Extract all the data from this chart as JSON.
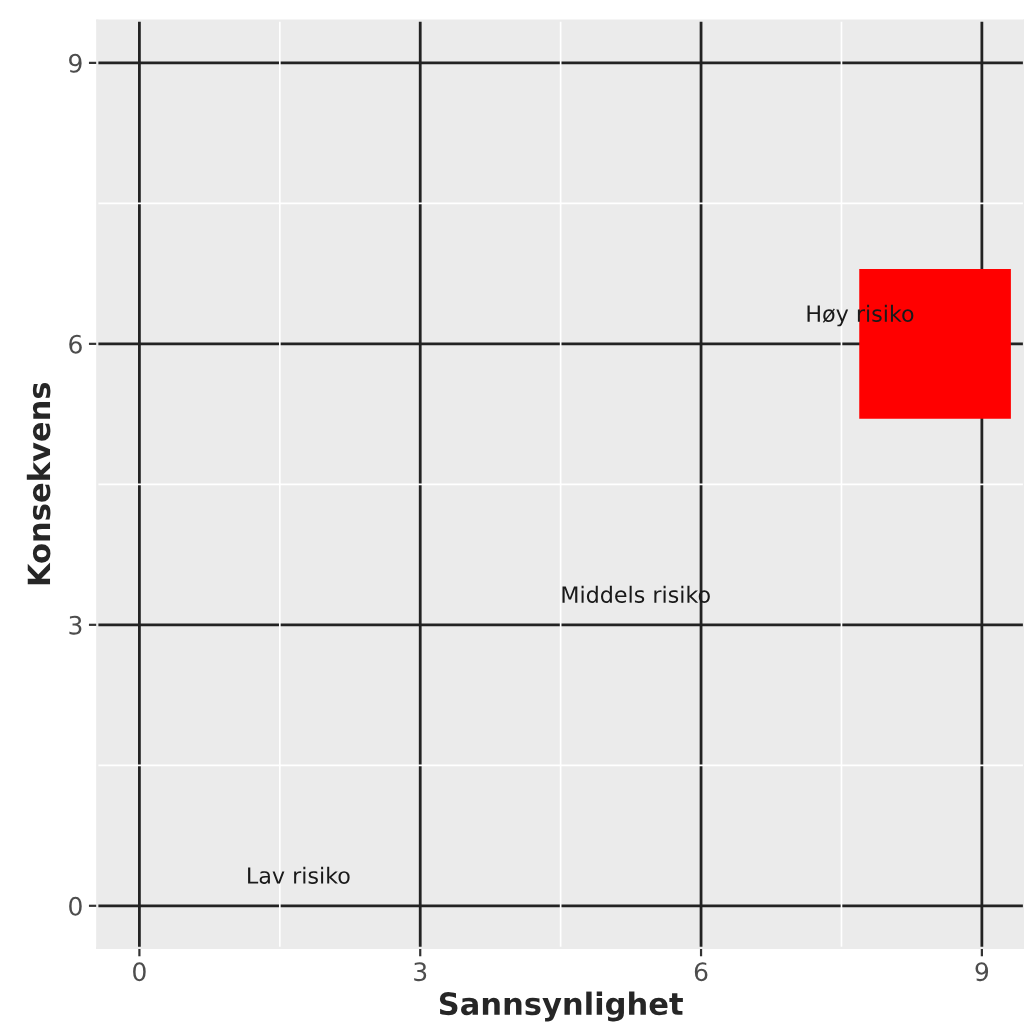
{
  "chart_data": {
    "type": "bar",
    "xlabel": "Sannsynlighet",
    "ylabel": "Konsekvens",
    "x": [
      8.5
    ],
    "series": [
      {
        "color": "#ff0000",
        "values": [
          1.6
        ],
        "base": [
          5.2
        ]
      }
    ],
    "xlim": [
      -0.45,
      9.45
    ],
    "ylim": [
      -0.45,
      9.45
    ],
    "xticks": [
      0,
      3,
      6,
      9
    ],
    "yticks": [
      0,
      3,
      6,
      9
    ],
    "grid": true,
    "annotations": [
      "Lav risiko",
      "Middels risiko",
      "Høy risiko"
    ]
  }
}
